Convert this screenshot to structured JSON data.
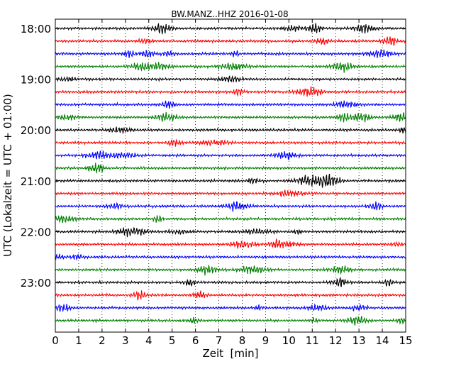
{
  "chart_data": {
    "type": "line",
    "title": "BW.MANZ..HHZ 2016-01-08",
    "xlabel": "Zeit  [min]",
    "ylabel": "UTC (Lokalzeit = UTC + 01:00)",
    "xlim": [
      0,
      15
    ],
    "x_ticks": [
      "0",
      "1",
      "2",
      "3",
      "4",
      "5",
      "6",
      "7",
      "8",
      "9",
      "10",
      "11",
      "12",
      "13",
      "14",
      "15"
    ],
    "y_ticks": [
      "18:00",
      "19:00",
      "20:00",
      "21:00",
      "22:00",
      "23:00"
    ],
    "y_tick_rows": [
      0,
      4,
      8,
      12,
      16,
      20
    ],
    "row_count": 24,
    "row_minutes": 15,
    "grid": "vertical dotted at each minute",
    "trace_colors": [
      "#000000",
      "#ff0000",
      "#0000ff",
      "#007f00"
    ]
  }
}
